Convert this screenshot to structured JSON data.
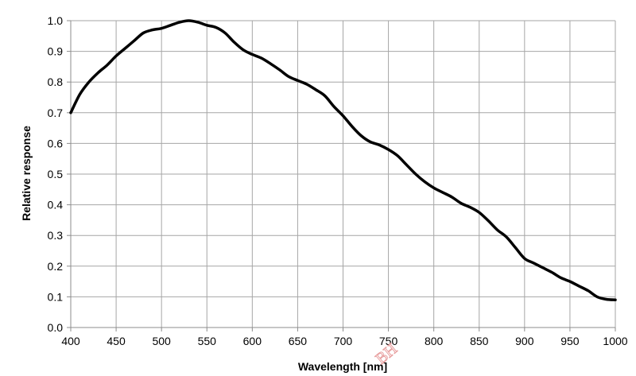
{
  "chart_data": {
    "type": "line",
    "title": "",
    "xlabel": "Wavelength [nm]",
    "ylabel": "Relative response",
    "xlim": [
      400,
      1000
    ],
    "ylim": [
      0,
      1.0
    ],
    "x_ticks": [
      "400",
      "450",
      "500",
      "550",
      "600",
      "650",
      "700",
      "750",
      "800",
      "850",
      "900",
      "950",
      "1000"
    ],
    "y_ticks": [
      "0.0",
      "0.1",
      "0.2",
      "0.3",
      "0.4",
      "0.5",
      "0.6",
      "0.7",
      "0.8",
      "0.9",
      "1.0"
    ],
    "grid": true,
    "legend": "none",
    "series": [
      {
        "color": "#000000",
        "x": [
          400,
          410,
          420,
          430,
          440,
          450,
          460,
          470,
          480,
          490,
          500,
          510,
          520,
          530,
          540,
          550,
          560,
          570,
          580,
          590,
          600,
          610,
          620,
          630,
          640,
          650,
          660,
          670,
          680,
          690,
          700,
          710,
          720,
          730,
          740,
          750,
          760,
          770,
          780,
          790,
          800,
          810,
          820,
          830,
          840,
          850,
          860,
          870,
          880,
          890,
          900,
          910,
          920,
          930,
          940,
          950,
          960,
          970,
          980,
          990,
          1000
        ],
        "y": [
          0.7,
          0.76,
          0.8,
          0.83,
          0.855,
          0.885,
          0.91,
          0.935,
          0.96,
          0.97,
          0.975,
          0.985,
          0.995,
          1.0,
          0.995,
          0.985,
          0.978,
          0.96,
          0.93,
          0.905,
          0.89,
          0.878,
          0.86,
          0.84,
          0.818,
          0.805,
          0.793,
          0.775,
          0.755,
          0.72,
          0.69,
          0.655,
          0.625,
          0.605,
          0.595,
          0.58,
          0.56,
          0.53,
          0.5,
          0.475,
          0.455,
          0.44,
          0.425,
          0.405,
          0.392,
          0.375,
          0.348,
          0.318,
          0.295,
          0.26,
          0.225,
          0.21,
          0.195,
          0.18,
          0.162,
          0.15,
          0.135,
          0.12,
          0.1,
          0.092,
          0.09
        ]
      }
    ],
    "watermark": "BH"
  }
}
